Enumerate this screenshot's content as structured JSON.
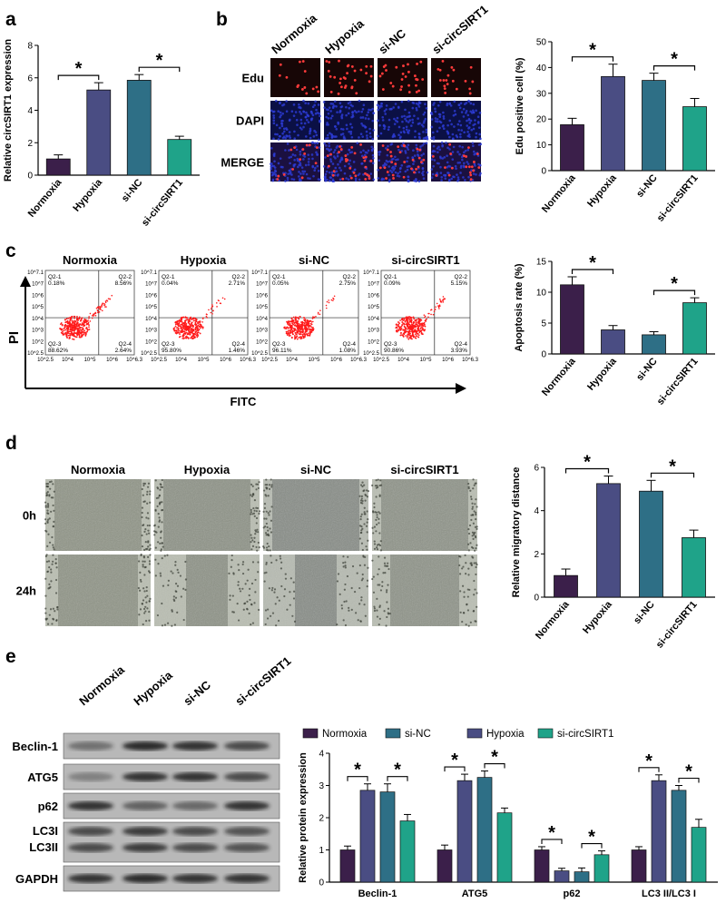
{
  "colors": {
    "normoxia": "#3b1f4a",
    "hypoxia": "#4a4d83",
    "sinc": "#2e6f86",
    "sicirc": "#1fa389",
    "flow": "#ff1a1a",
    "edu_bg": "#1a0808",
    "dapi_bg": "#0a0f3a"
  },
  "groups": [
    "Normoxia",
    "Hypoxia",
    "si-NC",
    "si-circSIRT1"
  ],
  "panels": {
    "a": {
      "label": "a"
    },
    "b": {
      "label": "b",
      "rows": [
        "Edu",
        "DAPI",
        "MERGE"
      ]
    },
    "c": {
      "label": "c",
      "axis_y": "PI",
      "axis_x": "FITC",
      "quadrants": [
        {
          "q1": "Q2-1",
          "v1": "0.18%",
          "q2": "Q2-2",
          "v2": "8.56%",
          "q3": "Q2-3",
          "v3": "88.62%",
          "q4": "Q2-4",
          "v4": "2.64%"
        },
        {
          "q1": "Q2-1",
          "v1": "0.04%",
          "q2": "Q2-2",
          "v2": "2.71%",
          "q3": "Q2-3",
          "v3": "95.80%",
          "q4": "Q2-4",
          "v4": "1.46%"
        },
        {
          "q1": "Q2-1",
          "v1": "0.05%",
          "q2": "Q2-2",
          "v2": "2.75%",
          "q3": "Q2-3",
          "v3": "96.11%",
          "q4": "Q2-4",
          "v4": "1.08%"
        },
        {
          "q1": "Q2-1",
          "v1": "0.09%",
          "q2": "Q2-2",
          "v2": "5.15%",
          "q3": "Q2-3",
          "v3": "90.86%",
          "q4": "Q2-4",
          "v4": "3.93%"
        }
      ],
      "tick_x": [
        "10^2.5",
        "10^4",
        "10^5",
        "10^6",
        "10^6.3"
      ],
      "tick_y": [
        "10^7.1",
        "10^7",
        "10^6",
        "10^5",
        "10^4",
        "10^3",
        "10^2",
        "10^2.5"
      ]
    },
    "d": {
      "label": "d",
      "rows": [
        "0h",
        "24h"
      ]
    },
    "e": {
      "label": "e",
      "blot_rows": [
        "Beclin-1",
        "ATG5",
        "p62",
        "LC3I",
        "LC3II",
        "GAPDH"
      ]
    }
  },
  "chart_data": [
    {
      "id": "a",
      "type": "bar",
      "categories": [
        "Normoxia",
        "Hypoxia",
        "si-NC",
        "si-circSIRT1"
      ],
      "values": [
        1.0,
        5.25,
        5.85,
        2.2
      ],
      "errors": [
        0.25,
        0.45,
        0.35,
        0.2
      ],
      "ylabel": "Relative circSIRT1 expression",
      "ylim": [
        0,
        8
      ],
      "yticks": [
        "0",
        "2",
        "4",
        "6",
        "8"
      ],
      "significance": [
        [
          0,
          1,
          "*"
        ],
        [
          2,
          3,
          "*"
        ]
      ]
    },
    {
      "id": "b",
      "type": "bar",
      "categories": [
        "Normoxia",
        "Hypoxia",
        "si-NC",
        "si-circSIRT1"
      ],
      "values": [
        17.8,
        36.5,
        35.0,
        24.8
      ],
      "errors": [
        2.5,
        4.8,
        2.8,
        3.2
      ],
      "ylabel": "Edu positive cell (%)",
      "ylim": [
        0,
        50
      ],
      "yticks": [
        "0",
        "10",
        "20",
        "30",
        "40",
        "50"
      ],
      "significance": [
        [
          0,
          1,
          "*"
        ],
        [
          2,
          3,
          "*"
        ]
      ]
    },
    {
      "id": "c",
      "type": "bar",
      "categories": [
        "Normoxia",
        "Hypoxia",
        "si-NC",
        "si-circSIRT1"
      ],
      "values": [
        11.2,
        3.9,
        3.1,
        8.3
      ],
      "errors": [
        1.3,
        0.7,
        0.5,
        0.8
      ],
      "ylabel": "Apoptosis rate (%)",
      "ylim": [
        0,
        15
      ],
      "yticks": [
        "0",
        "5",
        "10",
        "15"
      ],
      "significance": [
        [
          0,
          1,
          "*"
        ],
        [
          2,
          3,
          "*"
        ]
      ]
    },
    {
      "id": "d",
      "type": "bar",
      "categories": [
        "Normoxia",
        "Hypoxia",
        "si-NC",
        "si-circSIRT1"
      ],
      "values": [
        1.0,
        5.25,
        4.9,
        2.75
      ],
      "errors": [
        0.3,
        0.35,
        0.5,
        0.35
      ],
      "ylabel": "Relative migratory distance",
      "ylim": [
        0,
        6
      ],
      "yticks": [
        "0",
        "2",
        "4",
        "6"
      ],
      "significance": [
        [
          0,
          1,
          "*"
        ],
        [
          2,
          3,
          "*"
        ]
      ]
    },
    {
      "id": "e",
      "type": "bar",
      "categories": [
        "Beclin-1",
        "ATG5",
        "p62",
        "LC3 II/LC3 I"
      ],
      "legend": [
        "Normoxia",
        "si-NC",
        "Hypoxia",
        "si-circSIRT1"
      ],
      "series": [
        {
          "name": "Normoxia",
          "values": [
            1.0,
            1.0,
            1.0,
            1.0
          ],
          "errors": [
            0.12,
            0.15,
            0.1,
            0.1
          ]
        },
        {
          "name": "Hypoxia",
          "values": [
            2.85,
            3.15,
            0.35,
            3.15
          ],
          "errors": [
            0.2,
            0.2,
            0.08,
            0.18
          ]
        },
        {
          "name": "si-NC",
          "values": [
            2.8,
            3.25,
            0.32,
            2.85
          ],
          "errors": [
            0.25,
            0.2,
            0.12,
            0.15
          ]
        },
        {
          "name": "si-circSIRT1",
          "values": [
            1.9,
            2.15,
            0.85,
            1.7
          ],
          "errors": [
            0.2,
            0.15,
            0.12,
            0.25
          ]
        }
      ],
      "ylabel": "Relative protein expression",
      "ylim": [
        0,
        4
      ],
      "yticks": [
        "0",
        "1",
        "2",
        "3",
        "4"
      ],
      "significance": [
        [
          0,
          1,
          "*"
        ],
        [
          2,
          3,
          "*"
        ]
      ]
    }
  ]
}
